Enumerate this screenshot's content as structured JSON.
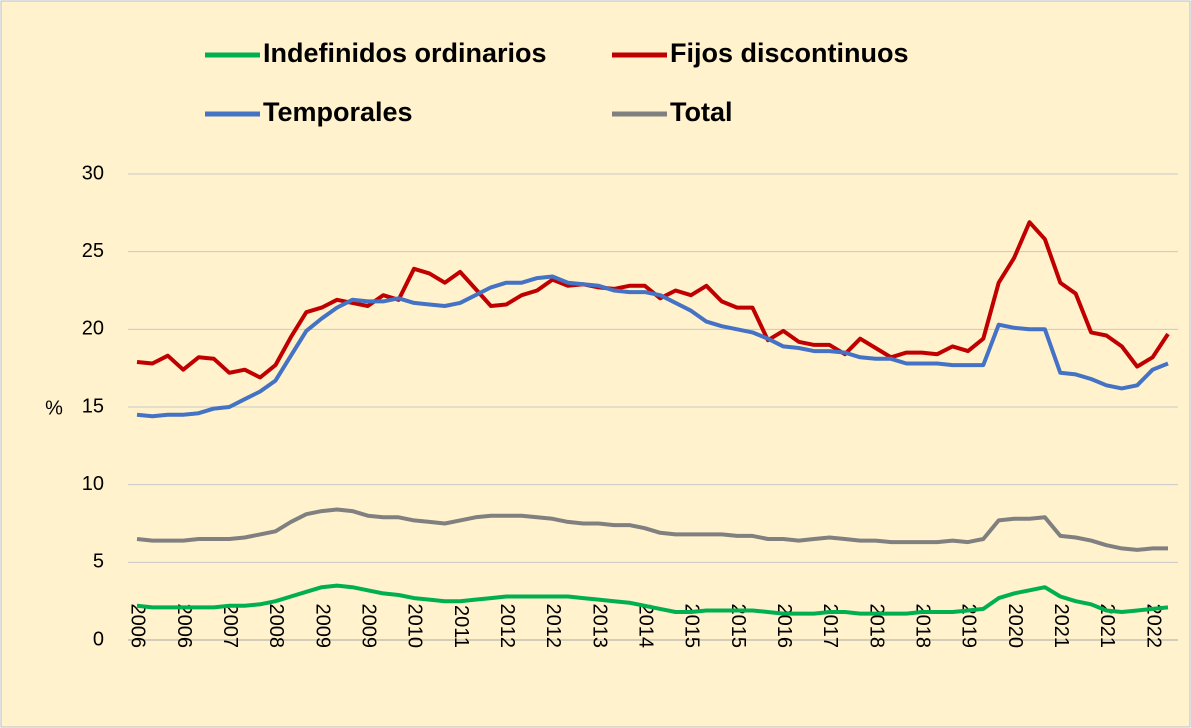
{
  "chart_data": {
    "type": "line",
    "y_label": "%",
    "categories": [
      "2006",
      null,
      null,
      "2006",
      null,
      null,
      "2007",
      null,
      null,
      "2008",
      null,
      null,
      "2009",
      null,
      null,
      "2009",
      null,
      null,
      "2010",
      null,
      null,
      "2011",
      null,
      null,
      "2012",
      null,
      null,
      "2012",
      null,
      null,
      "2013",
      null,
      null,
      "2014",
      null,
      null,
      "2015",
      null,
      null,
      "2015",
      null,
      null,
      "2016",
      null,
      null,
      "2017",
      null,
      null,
      "2018",
      null,
      null,
      "2018",
      null,
      null,
      "2019",
      null,
      null,
      "2020",
      null,
      null,
      "2021",
      null,
      null,
      "2021",
      null,
      null,
      "2022",
      null
    ],
    "series": [
      {
        "name": "Indefinidos ordinarios",
        "color": "#00b050",
        "values": [
          2.2,
          2.1,
          2.1,
          2.1,
          2.1,
          2.1,
          2.2,
          2.2,
          2.3,
          2.5,
          2.8,
          3.1,
          3.4,
          3.5,
          3.4,
          3.2,
          3.0,
          2.9,
          2.7,
          2.6,
          2.5,
          2.5,
          2.6,
          2.7,
          2.8,
          2.8,
          2.8,
          2.8,
          2.8,
          2.7,
          2.6,
          2.5,
          2.4,
          2.2,
          2.0,
          1.8,
          1.8,
          1.9,
          1.9,
          1.9,
          1.9,
          1.8,
          1.7,
          1.7,
          1.7,
          1.8,
          1.8,
          1.7,
          1.7,
          1.7,
          1.7,
          1.8,
          1.8,
          1.8,
          1.9,
          2.0,
          2.7,
          3.0,
          3.2,
          3.4,
          2.8,
          2.5,
          2.3,
          1.9,
          1.8,
          1.9,
          2.0,
          2.1
        ]
      },
      {
        "name": "Fijos discontinuos",
        "color": "#c00000",
        "values": [
          17.9,
          17.8,
          18.3,
          17.4,
          18.2,
          18.1,
          17.2,
          17.4,
          16.9,
          17.7,
          19.5,
          21.1,
          21.4,
          21.9,
          21.7,
          21.5,
          22.2,
          21.9,
          23.9,
          23.6,
          23.0,
          23.7,
          22.6,
          21.5,
          21.6,
          22.2,
          22.5,
          23.2,
          22.8,
          22.9,
          22.7,
          22.6,
          22.8,
          22.8,
          22.0,
          22.5,
          22.2,
          22.8,
          21.8,
          21.4,
          21.4,
          19.3,
          19.9,
          19.2,
          19.0,
          19.0,
          18.4,
          19.4,
          18.8,
          18.2,
          18.5,
          18.5,
          18.4,
          18.9,
          18.6,
          19.4,
          23.0,
          24.6,
          26.9,
          25.8,
          23.0,
          22.3,
          19.8,
          19.6,
          18.9,
          17.6,
          18.2,
          19.7
        ]
      },
      {
        "name": "Temporales",
        "color": "#4472c4",
        "values": [
          14.5,
          14.4,
          14.5,
          14.5,
          14.6,
          14.9,
          15.0,
          15.5,
          16.0,
          16.7,
          18.3,
          19.9,
          20.7,
          21.4,
          21.9,
          21.8,
          21.8,
          22.0,
          21.7,
          21.6,
          21.5,
          21.7,
          22.2,
          22.7,
          23.0,
          23.0,
          23.3,
          23.4,
          23.0,
          22.9,
          22.8,
          22.5,
          22.4,
          22.4,
          22.2,
          21.7,
          21.2,
          20.5,
          20.2,
          20.0,
          19.8,
          19.4,
          18.9,
          18.8,
          18.6,
          18.6,
          18.5,
          18.2,
          18.1,
          18.1,
          17.8,
          17.8,
          17.8,
          17.7,
          17.7,
          17.7,
          20.3,
          20.1,
          20.0,
          20.0,
          17.2,
          17.1,
          16.8,
          16.4,
          16.2,
          16.4,
          17.4,
          17.8
        ]
      },
      {
        "name": "Total",
        "color": "#808080",
        "values": [
          6.5,
          6.4,
          6.4,
          6.4,
          6.5,
          6.5,
          6.5,
          6.6,
          6.8,
          7.0,
          7.6,
          8.1,
          8.3,
          8.4,
          8.3,
          8.0,
          7.9,
          7.9,
          7.7,
          7.6,
          7.5,
          7.7,
          7.9,
          8.0,
          8.0,
          8.0,
          7.9,
          7.8,
          7.6,
          7.5,
          7.5,
          7.4,
          7.4,
          7.2,
          6.9,
          6.8,
          6.8,
          6.8,
          6.8,
          6.7,
          6.7,
          6.5,
          6.5,
          6.4,
          6.5,
          6.6,
          6.5,
          6.4,
          6.4,
          6.3,
          6.3,
          6.3,
          6.3,
          6.4,
          6.3,
          6.5,
          7.7,
          7.8,
          7.8,
          7.9,
          6.7,
          6.6,
          6.4,
          6.1,
          5.9,
          5.8,
          5.9,
          5.9
        ]
      }
    ],
    "ylim": [
      0,
      30
    ],
    "yticks": [
      0,
      5,
      10,
      15,
      20,
      25,
      30
    ],
    "grid": true,
    "legend": "top"
  }
}
